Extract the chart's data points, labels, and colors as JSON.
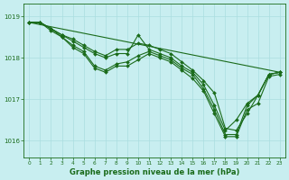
{
  "bg_color": "#c8eef0",
  "grid_color": "#aadde0",
  "line_color": "#1a6b1a",
  "title": "Graphe pression niveau de la mer (hPa)",
  "xlim": [
    -0.5,
    23.5
  ],
  "ylim": [
    1015.6,
    1019.3
  ],
  "yticks": [
    1016,
    1017,
    1018,
    1019
  ],
  "xticks": [
    0,
    1,
    2,
    3,
    4,
    5,
    6,
    7,
    8,
    9,
    10,
    11,
    12,
    13,
    14,
    15,
    16,
    17,
    18,
    19,
    20,
    21,
    22,
    23
  ],
  "series": [
    {
      "x": [
        0,
        1,
        2,
        3,
        4,
        5,
        6,
        7,
        8,
        9,
        10,
        11,
        12,
        13,
        14,
        15,
        16,
        17,
        18,
        19,
        20,
        21,
        22,
        23
      ],
      "y": [
        1018.85,
        1018.85,
        1018.7,
        1018.55,
        1018.45,
        1018.3,
        1018.15,
        1018.05,
        1018.2,
        1018.2,
        1018.35,
        1018.3,
        1018.2,
        1018.1,
        1017.9,
        1017.7,
        1017.45,
        1017.15,
        1016.3,
        1016.25,
        1016.65,
        1017.1,
        1017.6,
        1017.65
      ],
      "marker": true
    },
    {
      "x": [
        0,
        1,
        2,
        3,
        4,
        5,
        6,
        7,
        8,
        9,
        10,
        11,
        12,
        13,
        14,
        15,
        16,
        17,
        18,
        19,
        20,
        21,
        22,
        23
      ],
      "y": [
        1018.85,
        1018.85,
        1018.7,
        1018.55,
        1018.4,
        1018.25,
        1018.1,
        1018.0,
        1018.1,
        1018.1,
        1018.55,
        1018.2,
        1018.1,
        1018.0,
        1017.8,
        1017.65,
        1017.35,
        1016.85,
        1016.25,
        1016.5,
        1016.9,
        1017.1,
        1017.6,
        1017.65
      ],
      "marker": true
    },
    {
      "x": [
        0,
        1,
        2,
        3,
        4,
        5,
        6,
        7,
        8,
        9,
        10,
        11,
        12,
        13,
        14,
        15,
        16,
        17,
        18,
        19,
        20,
        21,
        22,
        23
      ],
      "y": [
        1018.85,
        1018.85,
        1018.7,
        1018.5,
        1018.3,
        1018.15,
        1017.8,
        1017.7,
        1017.85,
        1017.9,
        1018.05,
        1018.15,
        1018.05,
        1017.95,
        1017.75,
        1017.6,
        1017.25,
        1016.75,
        1016.15,
        1016.15,
        1016.85,
        1017.1,
        1017.6,
        1017.65
      ],
      "marker": true
    },
    {
      "x": [
        0,
        1,
        2,
        3,
        4,
        5,
        6,
        7,
        8,
        9,
        10,
        11,
        12,
        13,
        14,
        15,
        16,
        17,
        18,
        19,
        20,
        21,
        22,
        23
      ],
      "y": [
        1018.85,
        1018.85,
        1018.65,
        1018.5,
        1018.25,
        1018.1,
        1017.75,
        1017.65,
        1017.8,
        1017.8,
        1017.95,
        1018.1,
        1018.0,
        1017.9,
        1017.7,
        1017.5,
        1017.2,
        1016.65,
        1016.1,
        1016.1,
        1016.75,
        1016.9,
        1017.55,
        1017.6
      ],
      "marker": true
    },
    {
      "x": [
        0,
        23
      ],
      "y": [
        1018.85,
        1017.65
      ],
      "marker": false
    }
  ]
}
